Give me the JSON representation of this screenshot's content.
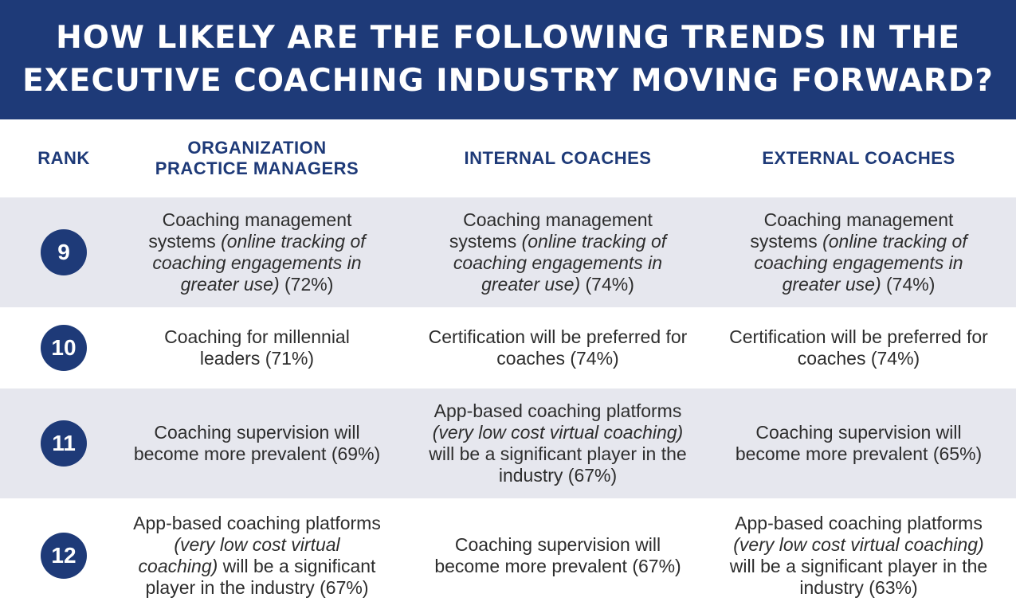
{
  "title_line1": "HOW LIKELY ARE THE FOLLOWING TRENDS IN THE",
  "title_line2": "EXECUTIVE COACHING INDUSTRY MOVING FORWARD?",
  "columns": {
    "rank": "RANK",
    "org_line1": "ORGANIZATION",
    "org_line2": "PRACTICE MANAGERS",
    "internal": "INTERNAL COACHES",
    "external": "EXTERNAL COACHES"
  },
  "colors": {
    "navy": "#1e3a78",
    "row_shade": "#e6e7ee"
  },
  "rows": [
    {
      "rank": "9",
      "org": {
        "pre": "Coaching management systems ",
        "italic": "(online tracking of coaching engagements in greater use)",
        "post": " (72%)"
      },
      "internal": {
        "pre": "Coaching management systems ",
        "italic": "(online tracking of coaching engagements in greater use)",
        "post": " (74%)"
      },
      "external": {
        "pre": "Coaching management systems ",
        "italic": "(online tracking of coaching engagements in greater use)",
        "post": " (74%)"
      }
    },
    {
      "rank": "10",
      "org": {
        "pre": "Coaching for millennial leaders (71%)",
        "italic": "",
        "post": ""
      },
      "internal": {
        "pre": "Certification will be preferred for coaches (74%)",
        "italic": "",
        "post": ""
      },
      "external": {
        "pre": "Certification will be preferred for coaches (74%)",
        "italic": "",
        "post": ""
      }
    },
    {
      "rank": "11",
      "org": {
        "pre": "Coaching supervision will become more prevalent (69%)",
        "italic": "",
        "post": ""
      },
      "internal": {
        "pre": "App-based coaching platforms ",
        "italic": "(very low cost virtual coaching)",
        "post": " will be a significant player in the industry (67%)"
      },
      "external": {
        "pre": "Coaching supervision will become more prevalent (65%)",
        "italic": "",
        "post": ""
      }
    },
    {
      "rank": "12",
      "org": {
        "pre": "App-based coaching platforms ",
        "italic": "(very low cost virtual coaching)",
        "post": " will be a significant player in the industry (67%)"
      },
      "internal": {
        "pre": "Coaching supervision will become more prevalent (67%)",
        "italic": "",
        "post": ""
      },
      "external": {
        "pre": "App-based coaching platforms ",
        "italic": "(very low cost virtual coaching)",
        "post": " will be a significant player in the industry (63%)"
      }
    }
  ]
}
